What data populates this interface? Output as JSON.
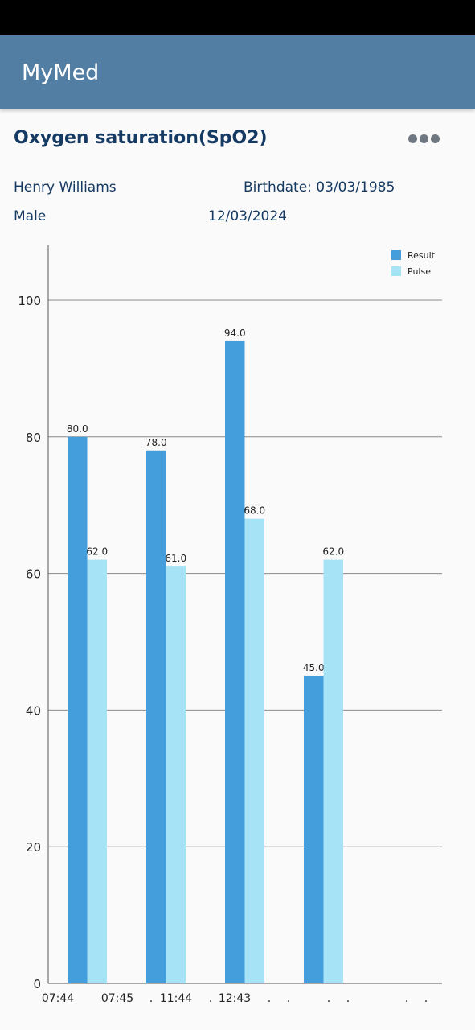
{
  "app": {
    "title": "MyMed"
  },
  "screen": {
    "title": "Oxygen saturation(SpO2)",
    "menu_icon": "more-horizontal-icon"
  },
  "patient": {
    "name": "Henry Williams",
    "birthdate": "Birthdate: 03/03/1985",
    "sex": "Male",
    "date": "12/03/2024"
  },
  "colors": {
    "app_bar": "#527ea4",
    "title_text": "#153a63",
    "result": "#439edb",
    "pulse": "#a6e3f6"
  },
  "chart_data": {
    "type": "bar",
    "title": "",
    "xlabel": "",
    "ylabel": "",
    "ylim": [
      0,
      100
    ],
    "y_ticks": [
      0,
      20,
      40,
      60,
      80,
      100
    ],
    "grid": true,
    "legend": "top-right",
    "categories": [
      "07:44",
      "07:45",
      "11:44",
      "12:43"
    ],
    "x_tick_labels": [
      "07:44",
      "07:45",
      ".",
      "11:44",
      ".",
      "12:43",
      ".",
      ".",
      ".",
      ".",
      ".",
      "."
    ],
    "series": [
      {
        "name": "Result",
        "values": [
          80.0,
          78.0,
          94.0,
          45.0
        ],
        "labels": [
          "80.0",
          "78.0",
          "94.0",
          "45.0"
        ]
      },
      {
        "name": "Pulse",
        "values": [
          62.0,
          61.0,
          68.0,
          62.0
        ],
        "labels": [
          "62.0",
          "61.0",
          "68.0",
          "62.0"
        ]
      }
    ]
  }
}
